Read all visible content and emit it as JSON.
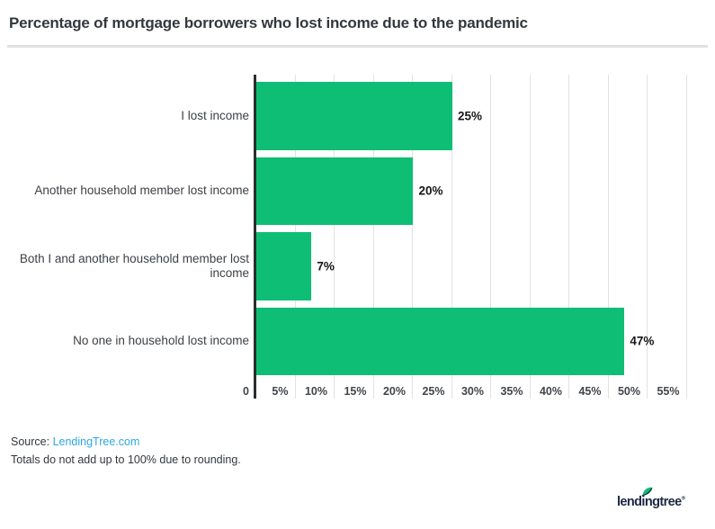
{
  "title": "Percentage of mortgage borrowers who lost income due to the pandemic",
  "chart_data": {
    "type": "bar",
    "orientation": "horizontal",
    "title": "Percentage of mortgage borrowers who lost income due to the pandemic",
    "categories": [
      "I lost income",
      "Another household member lost income",
      "Both I and another household member lost income",
      "No one in household lost income"
    ],
    "values": [
      25,
      20,
      7,
      47
    ],
    "value_labels": [
      "25%",
      "20%",
      "7%",
      "47%"
    ],
    "xlim": [
      0,
      55
    ],
    "xticks": [
      {
        "value": 0,
        "label": "0"
      },
      {
        "value": 5,
        "label": "5%"
      },
      {
        "value": 10,
        "label": "10%"
      },
      {
        "value": 15,
        "label": "15%"
      },
      {
        "value": 20,
        "label": "20%"
      },
      {
        "value": 25,
        "label": "25%"
      },
      {
        "value": 30,
        "label": "30%"
      },
      {
        "value": 35,
        "label": "35%"
      },
      {
        "value": 40,
        "label": "40%"
      },
      {
        "value": 45,
        "label": "45%"
      },
      {
        "value": 50,
        "label": "50%"
      },
      {
        "value": 55,
        "label": "55%"
      }
    ],
    "grid": true,
    "legend": false,
    "bar_color": "#0ebe74"
  },
  "footer": {
    "source_prefix": "Source: ",
    "source_link": "LendingTree.com",
    "note": "Totals do not add up to 100% due to rounding."
  },
  "logo": {
    "wordmark": "lendingtree",
    "registered_mark": "®"
  },
  "colors": {
    "bar": "#0ebe74",
    "axis_line": "#2b2d2f",
    "gridline": "#e2e2e2",
    "divider": "#e1e1e1",
    "title_text": "#33383d",
    "category_text": "#3d4145",
    "value_text": "#15171a",
    "tick_text": "#41454a",
    "link": "#2fa8df",
    "note_text": "#33373c",
    "logo_navy": "#1b2840",
    "leaf_green": "#0ebe74"
  }
}
